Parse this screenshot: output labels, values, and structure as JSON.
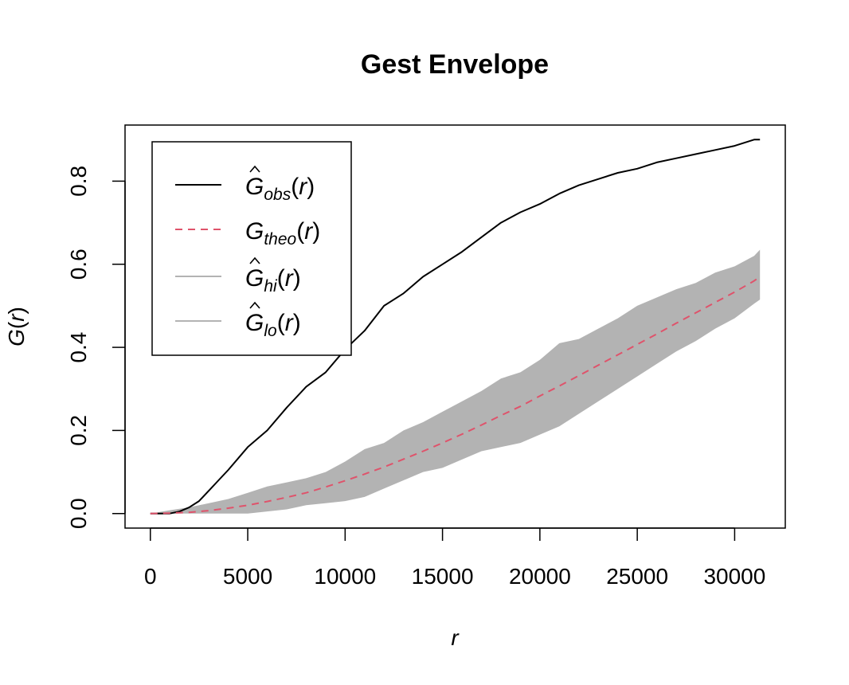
{
  "chart_data": {
    "type": "line",
    "title": "Gest Envelope",
    "xlabel": "r",
    "ylabel_main": "G",
    "ylabel_arg": "r",
    "xlim": [
      -1300,
      32600
    ],
    "ylim": [
      -0.035,
      0.935
    ],
    "x_ticks": [
      0,
      5000,
      10000,
      15000,
      20000,
      25000,
      30000
    ],
    "x_tick_labels": [
      "0",
      "5000",
      "10000",
      "15000",
      "20000",
      "25000",
      "30000"
    ],
    "y_ticks": [
      0.0,
      0.2,
      0.4,
      0.6,
      0.8
    ],
    "y_tick_labels": [
      "0.0",
      "0.2",
      "0.4",
      "0.6",
      "0.8"
    ],
    "grid": false,
    "legend_position": "top-left",
    "colors": {
      "obs": "#000000",
      "theo": "#DF536B",
      "envelope": "#B3B3B3"
    },
    "series": [
      {
        "key": "obs",
        "legend_main": "G",
        "legend_sub": "obs",
        "legend_hat": true,
        "legend_arg": "r",
        "style": "solid",
        "x": [
          0,
          1000,
          1500,
          2000,
          2500,
          3000,
          3500,
          4000,
          5000,
          6000,
          7000,
          8000,
          9000,
          10000,
          11000,
          12000,
          13000,
          14000,
          15000,
          16000,
          17000,
          18000,
          19000,
          20000,
          21000,
          22000,
          23000,
          24000,
          25000,
          26000,
          27000,
          28000,
          29000,
          30000,
          31000,
          31300
        ],
        "y": [
          0,
          0,
          0.005,
          0.015,
          0.03,
          0.055,
          0.08,
          0.105,
          0.16,
          0.2,
          0.255,
          0.305,
          0.34,
          0.395,
          0.44,
          0.5,
          0.53,
          0.57,
          0.6,
          0.63,
          0.665,
          0.7,
          0.725,
          0.745,
          0.77,
          0.79,
          0.805,
          0.82,
          0.83,
          0.845,
          0.855,
          0.865,
          0.875,
          0.885,
          0.9,
          0.9
        ]
      },
      {
        "key": "theo",
        "legend_main": "G",
        "legend_sub": "theo",
        "legend_hat": false,
        "legend_arg": "r",
        "style": "dashed",
        "x": [
          0,
          1000,
          2000,
          3000,
          4000,
          5000,
          6000,
          7000,
          8000,
          9000,
          10000,
          11000,
          12000,
          13000,
          14000,
          15000,
          16000,
          17000,
          18000,
          19000,
          20000,
          21000,
          22000,
          23000,
          24000,
          25000,
          26000,
          27000,
          28000,
          29000,
          30000,
          31000,
          31300
        ],
        "y": [
          0,
          0.001,
          0.003,
          0.007,
          0.013,
          0.02,
          0.029,
          0.039,
          0.05,
          0.064,
          0.079,
          0.095,
          0.112,
          0.131,
          0.15,
          0.17,
          0.191,
          0.213,
          0.236,
          0.258,
          0.283,
          0.307,
          0.332,
          0.357,
          0.382,
          0.407,
          0.432,
          0.458,
          0.483,
          0.508,
          0.533,
          0.56,
          0.57
        ]
      }
    ],
    "envelope": {
      "hi_legend_main": "G",
      "hi_legend_sub": "hi",
      "lo_legend_main": "G",
      "lo_legend_sub": "lo",
      "legend_arg": "r",
      "x": [
        0,
        1000,
        2000,
        3000,
        4000,
        5000,
        6000,
        7000,
        8000,
        9000,
        10000,
        11000,
        12000,
        13000,
        14000,
        15000,
        16000,
        17000,
        18000,
        19000,
        20000,
        21000,
        22000,
        23000,
        24000,
        25000,
        26000,
        27000,
        28000,
        29000,
        30000,
        31000,
        31300
      ],
      "hi": [
        0,
        0.008,
        0.015,
        0.025,
        0.035,
        0.05,
        0.065,
        0.075,
        0.085,
        0.1,
        0.125,
        0.155,
        0.17,
        0.2,
        0.22,
        0.245,
        0.27,
        0.295,
        0.325,
        0.34,
        0.37,
        0.41,
        0.42,
        0.445,
        0.47,
        0.5,
        0.52,
        0.54,
        0.555,
        0.58,
        0.595,
        0.62,
        0.635
      ],
      "lo": [
        0,
        0,
        0,
        0,
        0,
        0,
        0.005,
        0.01,
        0.02,
        0.025,
        0.03,
        0.04,
        0.06,
        0.08,
        0.1,
        0.11,
        0.13,
        0.15,
        0.16,
        0.17,
        0.19,
        0.21,
        0.24,
        0.27,
        0.3,
        0.33,
        0.36,
        0.39,
        0.415,
        0.445,
        0.47,
        0.505,
        0.515
      ]
    }
  }
}
